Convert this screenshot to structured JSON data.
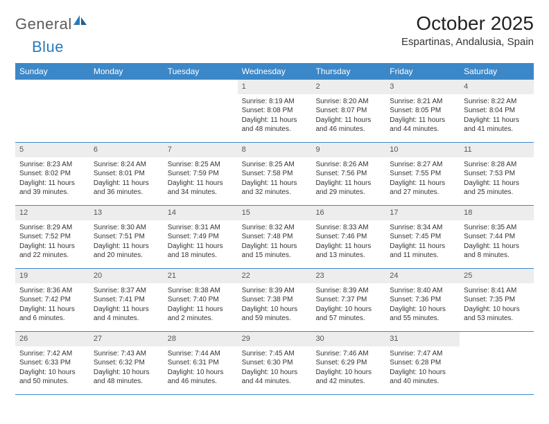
{
  "logo": {
    "text1": "General",
    "text2": "Blue"
  },
  "title": "October 2025",
  "location": "Espartinas, Andalusia, Spain",
  "colors": {
    "header_bg": "#3b87c8",
    "header_text": "#ffffff",
    "daynum_bg": "#ededed",
    "rule": "#3b87c8",
    "logo_gray": "#5a5a5a",
    "logo_blue": "#2a7ab8"
  },
  "day_names": [
    "Sunday",
    "Monday",
    "Tuesday",
    "Wednesday",
    "Thursday",
    "Friday",
    "Saturday"
  ],
  "weeks": [
    [
      {
        "n": "",
        "sr": "",
        "ss": "",
        "dl": ""
      },
      {
        "n": "",
        "sr": "",
        "ss": "",
        "dl": ""
      },
      {
        "n": "",
        "sr": "",
        "ss": "",
        "dl": ""
      },
      {
        "n": "1",
        "sr": "Sunrise: 8:19 AM",
        "ss": "Sunset: 8:08 PM",
        "dl": "Daylight: 11 hours and 48 minutes."
      },
      {
        "n": "2",
        "sr": "Sunrise: 8:20 AM",
        "ss": "Sunset: 8:07 PM",
        "dl": "Daylight: 11 hours and 46 minutes."
      },
      {
        "n": "3",
        "sr": "Sunrise: 8:21 AM",
        "ss": "Sunset: 8:05 PM",
        "dl": "Daylight: 11 hours and 44 minutes."
      },
      {
        "n": "4",
        "sr": "Sunrise: 8:22 AM",
        "ss": "Sunset: 8:04 PM",
        "dl": "Daylight: 11 hours and 41 minutes."
      }
    ],
    [
      {
        "n": "5",
        "sr": "Sunrise: 8:23 AM",
        "ss": "Sunset: 8:02 PM",
        "dl": "Daylight: 11 hours and 39 minutes."
      },
      {
        "n": "6",
        "sr": "Sunrise: 8:24 AM",
        "ss": "Sunset: 8:01 PM",
        "dl": "Daylight: 11 hours and 36 minutes."
      },
      {
        "n": "7",
        "sr": "Sunrise: 8:25 AM",
        "ss": "Sunset: 7:59 PM",
        "dl": "Daylight: 11 hours and 34 minutes."
      },
      {
        "n": "8",
        "sr": "Sunrise: 8:25 AM",
        "ss": "Sunset: 7:58 PM",
        "dl": "Daylight: 11 hours and 32 minutes."
      },
      {
        "n": "9",
        "sr": "Sunrise: 8:26 AM",
        "ss": "Sunset: 7:56 PM",
        "dl": "Daylight: 11 hours and 29 minutes."
      },
      {
        "n": "10",
        "sr": "Sunrise: 8:27 AM",
        "ss": "Sunset: 7:55 PM",
        "dl": "Daylight: 11 hours and 27 minutes."
      },
      {
        "n": "11",
        "sr": "Sunrise: 8:28 AM",
        "ss": "Sunset: 7:53 PM",
        "dl": "Daylight: 11 hours and 25 minutes."
      }
    ],
    [
      {
        "n": "12",
        "sr": "Sunrise: 8:29 AM",
        "ss": "Sunset: 7:52 PM",
        "dl": "Daylight: 11 hours and 22 minutes."
      },
      {
        "n": "13",
        "sr": "Sunrise: 8:30 AM",
        "ss": "Sunset: 7:51 PM",
        "dl": "Daylight: 11 hours and 20 minutes."
      },
      {
        "n": "14",
        "sr": "Sunrise: 8:31 AM",
        "ss": "Sunset: 7:49 PM",
        "dl": "Daylight: 11 hours and 18 minutes."
      },
      {
        "n": "15",
        "sr": "Sunrise: 8:32 AM",
        "ss": "Sunset: 7:48 PM",
        "dl": "Daylight: 11 hours and 15 minutes."
      },
      {
        "n": "16",
        "sr": "Sunrise: 8:33 AM",
        "ss": "Sunset: 7:46 PM",
        "dl": "Daylight: 11 hours and 13 minutes."
      },
      {
        "n": "17",
        "sr": "Sunrise: 8:34 AM",
        "ss": "Sunset: 7:45 PM",
        "dl": "Daylight: 11 hours and 11 minutes."
      },
      {
        "n": "18",
        "sr": "Sunrise: 8:35 AM",
        "ss": "Sunset: 7:44 PM",
        "dl": "Daylight: 11 hours and 8 minutes."
      }
    ],
    [
      {
        "n": "19",
        "sr": "Sunrise: 8:36 AM",
        "ss": "Sunset: 7:42 PM",
        "dl": "Daylight: 11 hours and 6 minutes."
      },
      {
        "n": "20",
        "sr": "Sunrise: 8:37 AM",
        "ss": "Sunset: 7:41 PM",
        "dl": "Daylight: 11 hours and 4 minutes."
      },
      {
        "n": "21",
        "sr": "Sunrise: 8:38 AM",
        "ss": "Sunset: 7:40 PM",
        "dl": "Daylight: 11 hours and 2 minutes."
      },
      {
        "n": "22",
        "sr": "Sunrise: 8:39 AM",
        "ss": "Sunset: 7:38 PM",
        "dl": "Daylight: 10 hours and 59 minutes."
      },
      {
        "n": "23",
        "sr": "Sunrise: 8:39 AM",
        "ss": "Sunset: 7:37 PM",
        "dl": "Daylight: 10 hours and 57 minutes."
      },
      {
        "n": "24",
        "sr": "Sunrise: 8:40 AM",
        "ss": "Sunset: 7:36 PM",
        "dl": "Daylight: 10 hours and 55 minutes."
      },
      {
        "n": "25",
        "sr": "Sunrise: 8:41 AM",
        "ss": "Sunset: 7:35 PM",
        "dl": "Daylight: 10 hours and 53 minutes."
      }
    ],
    [
      {
        "n": "26",
        "sr": "Sunrise: 7:42 AM",
        "ss": "Sunset: 6:33 PM",
        "dl": "Daylight: 10 hours and 50 minutes."
      },
      {
        "n": "27",
        "sr": "Sunrise: 7:43 AM",
        "ss": "Sunset: 6:32 PM",
        "dl": "Daylight: 10 hours and 48 minutes."
      },
      {
        "n": "28",
        "sr": "Sunrise: 7:44 AM",
        "ss": "Sunset: 6:31 PM",
        "dl": "Daylight: 10 hours and 46 minutes."
      },
      {
        "n": "29",
        "sr": "Sunrise: 7:45 AM",
        "ss": "Sunset: 6:30 PM",
        "dl": "Daylight: 10 hours and 44 minutes."
      },
      {
        "n": "30",
        "sr": "Sunrise: 7:46 AM",
        "ss": "Sunset: 6:29 PM",
        "dl": "Daylight: 10 hours and 42 minutes."
      },
      {
        "n": "31",
        "sr": "Sunrise: 7:47 AM",
        "ss": "Sunset: 6:28 PM",
        "dl": "Daylight: 10 hours and 40 minutes."
      },
      {
        "n": "",
        "sr": "",
        "ss": "",
        "dl": ""
      }
    ]
  ]
}
